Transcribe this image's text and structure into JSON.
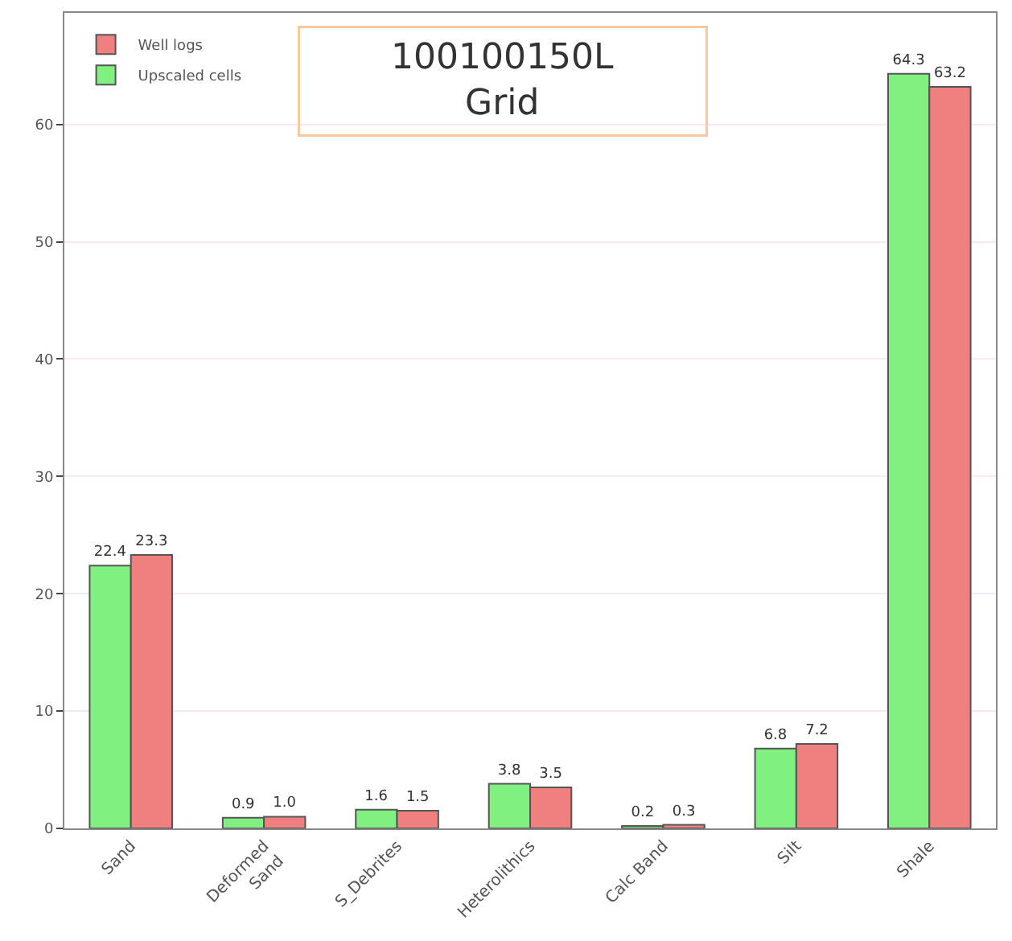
{
  "chart_data": {
    "type": "bar",
    "title": "100100150L\nGrid",
    "categories": [
      "Sand",
      "Deformed\nSand",
      "S_Debrites",
      "Heterolithics",
      "Calc Band",
      "Silt",
      "Shale"
    ],
    "series": [
      {
        "name": "Upscaled cells",
        "color": "#80f080",
        "values": [
          22.4,
          0.9,
          1.6,
          3.8,
          0.2,
          6.8,
          64.3
        ],
        "value_labels": [
          "22.4",
          "0.9",
          "1.6",
          "3.8",
          "0.2",
          "6.8",
          "64.3"
        ]
      },
      {
        "name": "Well logs",
        "color": "#f08080",
        "values": [
          23.3,
          1.0,
          1.5,
          3.5,
          0.3,
          7.2,
          63.2
        ],
        "value_labels": [
          "23.3",
          "1.0",
          "1.5",
          "3.5",
          "0.3",
          "7.2",
          "63.2"
        ]
      }
    ],
    "ylim": [
      0,
      69.5
    ],
    "yticks": [
      0,
      10,
      20,
      30,
      40,
      50,
      60
    ],
    "grid": "y",
    "legend": "top left"
  }
}
